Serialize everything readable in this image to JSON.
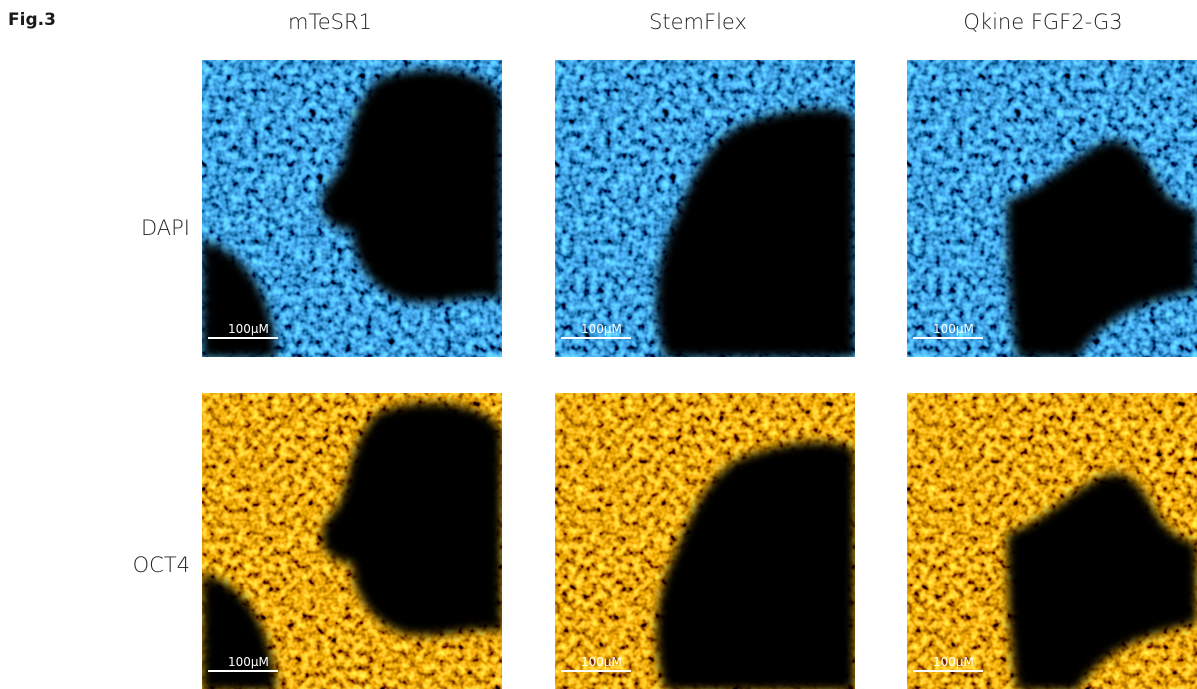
{
  "figure": {
    "label": "Fig.3",
    "columns": [
      "mTeSR1",
      "StemFlex",
      "Qkine FGF2-G3"
    ],
    "rows": [
      {
        "label": "DAPI",
        "panels": [
          {
            "scale_bar": "100μM"
          },
          {
            "scale_bar": "100μM"
          },
          {
            "scale_bar": "100μM"
          }
        ]
      },
      {
        "label": "OCT4",
        "panels": [
          {
            "scale_bar": "100μM"
          },
          {
            "scale_bar": "100μM"
          },
          {
            "scale_bar": "100μM"
          }
        ]
      }
    ]
  }
}
